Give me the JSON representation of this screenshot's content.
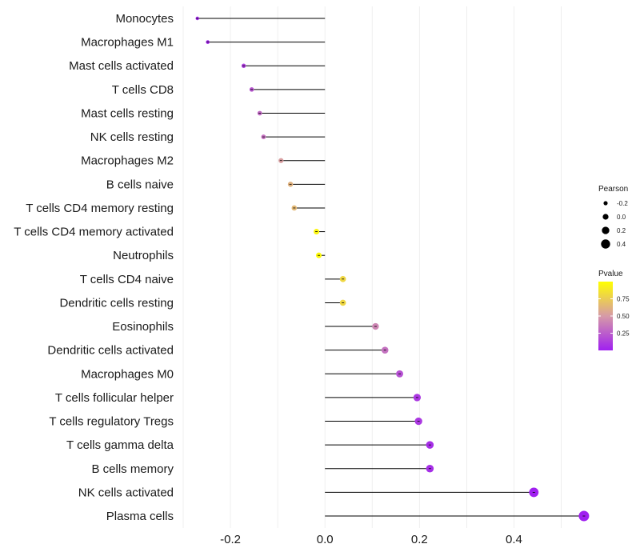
{
  "chart_data": {
    "type": "lollipop",
    "orientation": "horizontal",
    "title": "",
    "xlabel": "",
    "ylabel": "",
    "xlim": [
      -0.3,
      0.56
    ],
    "x_ticks": [
      -0.2,
      0.0,
      0.2,
      0.4
    ],
    "x_tick_labels": [
      "-0.2",
      "0.0",
      "0.2",
      "0.4"
    ],
    "grid": true,
    "baseline": 0.0,
    "categories": [
      "Monocytes",
      "Macrophages M1",
      "Mast cells activated",
      "T cells CD8",
      "Mast cells resting",
      "NK cells resting",
      "Macrophages M2",
      "B cells naive",
      "T cells CD4 memory resting",
      "T cells CD4 memory activated",
      "Neutrophils",
      "T cells CD4 naive",
      "Dendritic cells resting",
      "Eosinophils",
      "Dendritic cells activated",
      "Macrophages M0",
      "T cells follicular helper",
      "T cells regulatory  Tregs ",
      "T cells gamma delta",
      "B cells memory",
      "NK cells activated",
      "Plasma cells"
    ],
    "pearson": [
      -0.27,
      -0.248,
      -0.172,
      -0.155,
      -0.138,
      -0.13,
      -0.093,
      -0.073,
      -0.065,
      -0.018,
      -0.013,
      0.038,
      0.038,
      0.107,
      0.127,
      0.158,
      0.195,
      0.198,
      0.222,
      0.222,
      0.442,
      0.548
    ],
    "pvalue": [
      0.02,
      0.03,
      0.12,
      0.22,
      0.3,
      0.33,
      0.52,
      0.62,
      0.65,
      0.95,
      0.97,
      0.8,
      0.8,
      0.42,
      0.33,
      0.2,
      0.1,
      0.1,
      0.06,
      0.06,
      0.001,
      0.0001
    ],
    "size_legend": {
      "title": "Pearson",
      "values": [
        -0.2,
        0.0,
        0.2,
        0.4
      ],
      "labels": [
        "-0.2",
        "0.0",
        "0.2",
        "0.4"
      ]
    },
    "color_legend": {
      "title": "Pvalue",
      "range": [
        0.0,
        1.0
      ],
      "ticks": [
        0.25,
        0.5,
        0.75
      ],
      "tick_labels": [
        "0.25",
        "0.50",
        "0.75"
      ],
      "low_color": "#a020f0",
      "mid_color": "#d69aa7",
      "high_color": "#ffff00"
    },
    "line_color": "#000000",
    "grid_color": "#ebebeb"
  }
}
